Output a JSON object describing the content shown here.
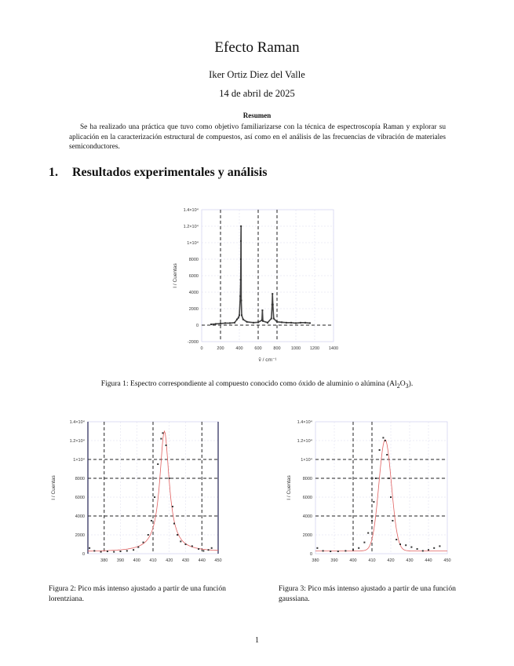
{
  "title": "Efecto Raman",
  "author": "Iker Ortiz Diez del Valle",
  "date": "14 de abril de 2025",
  "abstract": {
    "heading": "Resumen",
    "text": "Se ha realizado una práctica que tuvo como objetivo familiarizarse con la técnica de espectroscopía Raman y explorar su aplicación en la caracterización estructural de compuestos, así como en el análisis de las frecuencias de vibración de materiales semiconductores."
  },
  "section": {
    "number": "1.",
    "title": "Resultados experimentales y análisis"
  },
  "figures": [
    {
      "caption_prefix": "Figura 1: Espectro correspondiente al compuesto conocido como óxido de aluminio o alúmina (Al",
      "caption_sub1": "2",
      "caption_mid": "O",
      "caption_sub2": "3",
      "caption_suffix": ")."
    },
    {
      "caption": "Figura 2: Pico más intenso ajustado a partir de una función lorentziana."
    },
    {
      "caption": "Figura 3: Pico más intenso ajustado a partir de una función gaussiana."
    }
  ],
  "page_number": "1",
  "chart_data": [
    {
      "type": "scatter",
      "xlabel": "ṽ / cm⁻¹",
      "ylabel": "I / Cuentas",
      "xlim": [
        0,
        1400
      ],
      "ylim": [
        -2000,
        14000
      ],
      "xticks": [
        "0",
        "200",
        "400",
        "600",
        "800",
        "1000",
        "1200",
        "1400"
      ],
      "yticks": [
        "-2000",
        "0",
        "2000",
        "4000",
        "6000",
        "8000",
        "1×10⁴",
        "1.2×10⁴",
        "1.4×10⁴"
      ],
      "vlines": [
        200,
        600,
        800
      ],
      "points": [
        [
          100,
          100
        ],
        [
          150,
          150
        ],
        [
          200,
          200
        ],
        [
          250,
          250
        ],
        [
          300,
          250
        ],
        [
          350,
          300
        ],
        [
          375,
          700
        ],
        [
          390,
          900
        ],
        [
          400,
          1200
        ],
        [
          410,
          3500
        ],
        [
          414,
          5500
        ],
        [
          416,
          8000
        ],
        [
          417,
          10200
        ],
        [
          418,
          12000
        ],
        [
          420,
          3000
        ],
        [
          425,
          1200
        ],
        [
          440,
          700
        ],
        [
          480,
          400
        ],
        [
          550,
          300
        ],
        [
          600,
          350
        ],
        [
          640,
          600
        ],
        [
          645,
          1800
        ],
        [
          650,
          500
        ],
        [
          700,
          300
        ],
        [
          740,
          800
        ],
        [
          748,
          2500
        ],
        [
          752,
          3800
        ],
        [
          756,
          2500
        ],
        [
          765,
          800
        ],
        [
          800,
          400
        ],
        [
          850,
          350
        ],
        [
          900,
          300
        ],
        [
          950,
          300
        ],
        [
          1000,
          250
        ],
        [
          1050,
          300
        ],
        [
          1100,
          300
        ],
        [
          1150,
          250
        ]
      ]
    },
    {
      "type": "scatter",
      "xlabel": "ṽ / cm⁻¹",
      "ylabel": "I / Cuentas",
      "xlim": [
        370,
        450
      ],
      "ylim": [
        0,
        14000
      ],
      "xticks": [
        "380",
        "390",
        "400",
        "410",
        "420",
        "430",
        "440",
        "450"
      ],
      "yticks": [
        "0",
        "2000",
        "4000",
        "6000",
        "8000",
        "1×10⁴",
        "1.2×10⁴",
        "1.4×10⁴"
      ],
      "vlines": [
        380,
        410,
        440
      ],
      "hlines": [
        4000,
        8000,
        10000
      ],
      "fit": {
        "function": "lorentzian",
        "center": 417,
        "amplitude": 12800,
        "hwhm": 3.5,
        "offset": 200
      },
      "points": [
        [
          371,
          600
        ],
        [
          374,
          300
        ],
        [
          378,
          200
        ],
        [
          382,
          250
        ],
        [
          386,
          200
        ],
        [
          390,
          250
        ],
        [
          394,
          300
        ],
        [
          398,
          400
        ],
        [
          401,
          700
        ],
        [
          404,
          1200
        ],
        [
          407,
          2000
        ],
        [
          409,
          3500
        ],
        [
          411,
          6000
        ],
        [
          413,
          9500
        ],
        [
          415,
          12200
        ],
        [
          416,
          12800
        ],
        [
          418,
          11500
        ],
        [
          420,
          8000
        ],
        [
          422,
          5000
        ],
        [
          423,
          3200
        ],
        [
          425,
          2000
        ],
        [
          427,
          1300
        ],
        [
          430,
          1000
        ],
        [
          434,
          800
        ],
        [
          438,
          500
        ],
        [
          441,
          300
        ],
        [
          444,
          400
        ],
        [
          446,
          600
        ]
      ]
    },
    {
      "type": "scatter",
      "xlabel": "ṽ / cm⁻¹",
      "ylabel": "I / Cuentas",
      "xlim": [
        380,
        450
      ],
      "ylim": [
        0,
        14000
      ],
      "xticks": [
        "380",
        "390",
        "400",
        "410",
        "420",
        "430",
        "440",
        "450"
      ],
      "yticks": [
        "0",
        "2000",
        "4000",
        "6000",
        "8000",
        "1×10⁴",
        "1.2×10⁴",
        "1.4×10⁴"
      ],
      "vlines": [
        400,
        410
      ],
      "hlines": [
        4000,
        8000,
        10000
      ],
      "fit": {
        "function": "gaussian",
        "center": 417,
        "amplitude": 11800,
        "sigma": 3.3,
        "offset": 300
      },
      "points": [
        [
          381,
          600
        ],
        [
          384,
          300
        ],
        [
          388,
          250
        ],
        [
          392,
          250
        ],
        [
          396,
          300
        ],
        [
          400,
          400
        ],
        [
          403,
          600
        ],
        [
          406,
          1200
        ],
        [
          408,
          2200
        ],
        [
          410,
          3500
        ],
        [
          411,
          5500
        ],
        [
          412,
          8000
        ],
        [
          414,
          11000
        ],
        [
          416,
          12300
        ],
        [
          417,
          12000
        ],
        [
          418,
          10500
        ],
        [
          419,
          8000
        ],
        [
          420,
          6000
        ],
        [
          421,
          3500
        ],
        [
          423,
          1500
        ],
        [
          425,
          1000
        ],
        [
          428,
          900
        ],
        [
          431,
          700
        ],
        [
          434,
          500
        ],
        [
          437,
          300
        ],
        [
          440,
          400
        ],
        [
          443,
          600
        ],
        [
          446,
          800
        ]
      ]
    }
  ]
}
